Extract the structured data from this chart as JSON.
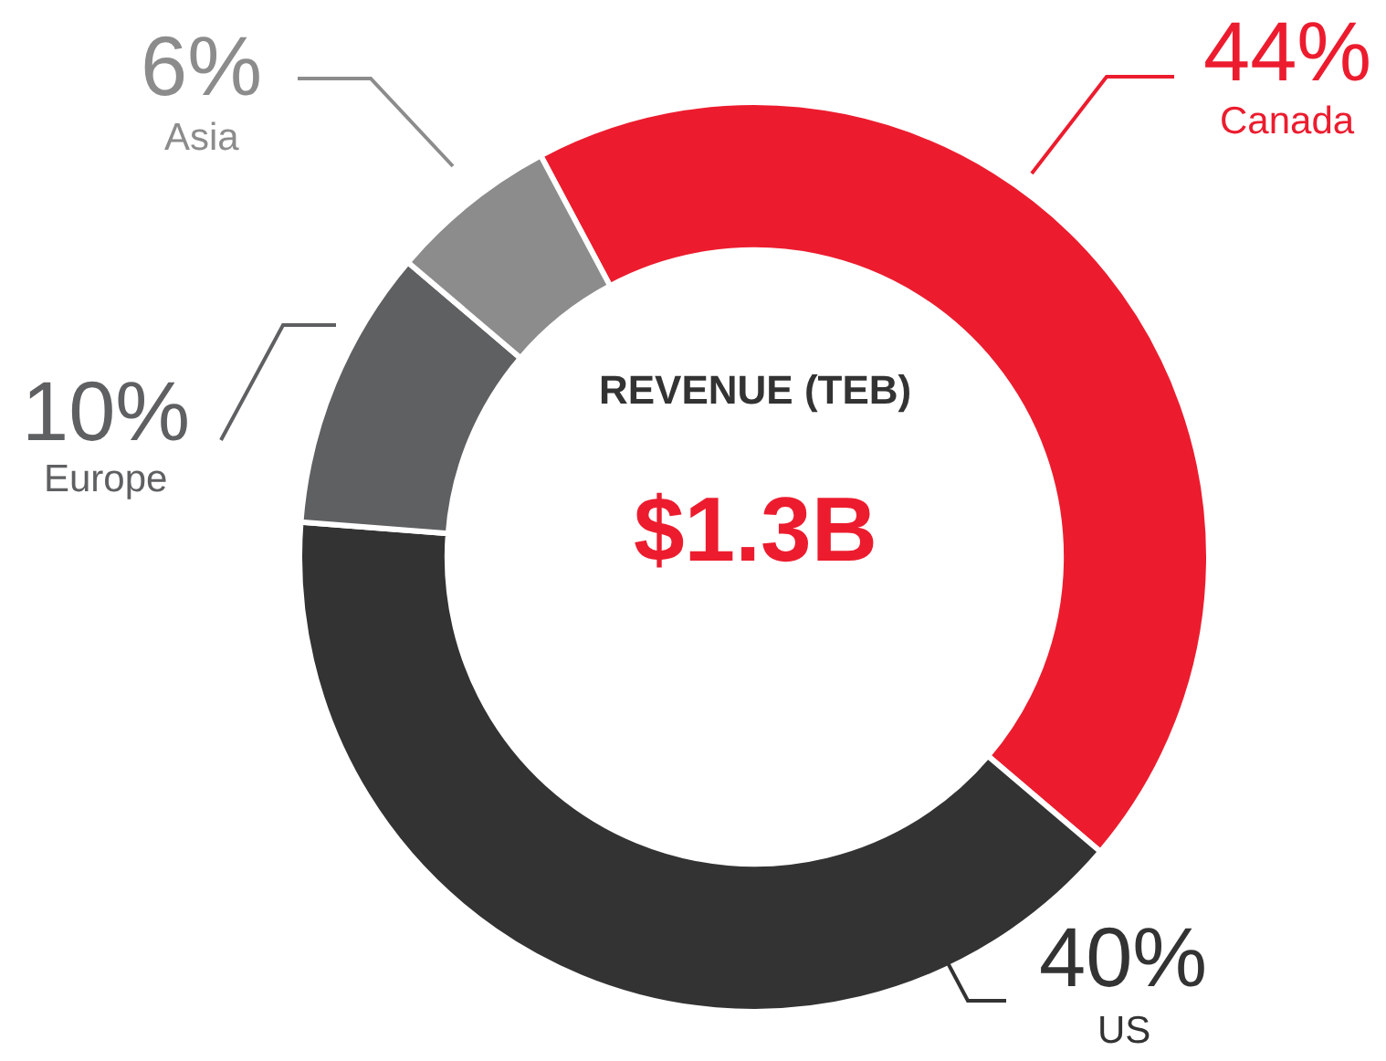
{
  "chart_data": {
    "type": "donut",
    "title": "REVENUE (TEB)",
    "annotations": [
      "$1.3B"
    ],
    "categories": [
      "Canada",
      "US",
      "Europe",
      "Asia"
    ],
    "values": [
      44,
      40,
      10,
      6
    ],
    "colors": [
      "#ec1c2e",
      "#333333",
      "#5f6062",
      "#8c8c8c"
    ],
    "value_labels": [
      "44%",
      "40%",
      "10%",
      "6%"
    ]
  }
}
